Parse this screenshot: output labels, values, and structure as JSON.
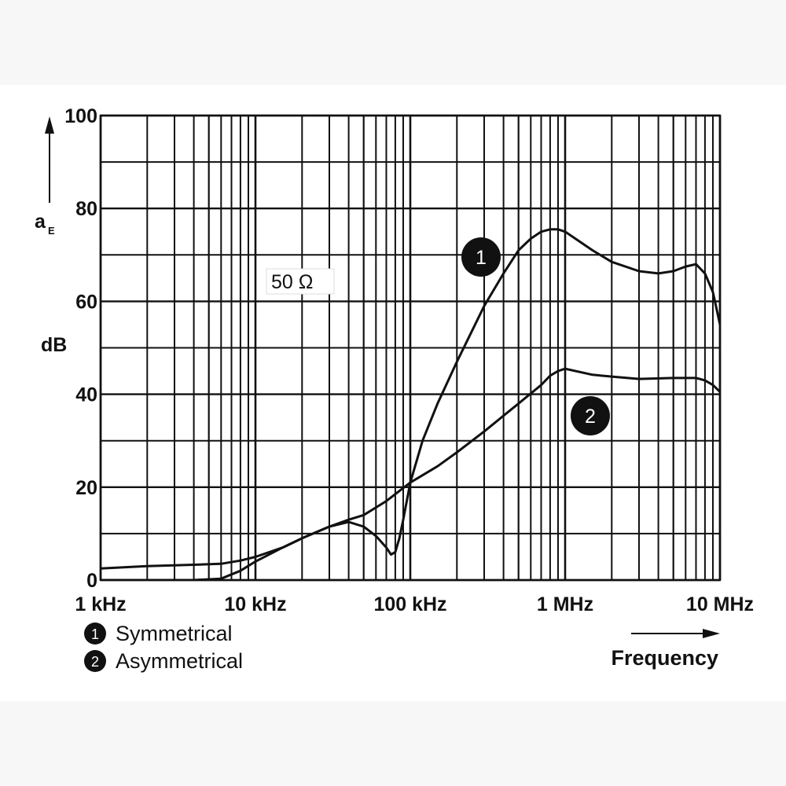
{
  "chart_data": {
    "type": "line",
    "title": "",
    "xlabel": "Frequency",
    "ylabel": "dB",
    "ylabel_symbol": "a",
    "ylabel_subscript": "E",
    "x_scale": "log",
    "xlim": [
      1000,
      10000000
    ],
    "ylim": [
      0,
      100
    ],
    "grid": true,
    "x_tick_labels": [
      "1 kHz",
      "10 kHz",
      "100 kHz",
      "1 MHz",
      "10 MHz"
    ],
    "y_tick_labels": [
      "0",
      "20",
      "40",
      "60",
      "80",
      "100"
    ],
    "annotation": "50 Ω",
    "series": [
      {
        "name": "Symmetrical",
        "marker": "1",
        "x": [
          1000,
          2000,
          4000,
          6000,
          8000,
          10000,
          15000,
          20000,
          30000,
          40000,
          50000,
          60000,
          70000,
          75000,
          80000,
          85000,
          90000,
          100000,
          120000,
          150000,
          200000,
          300000,
          400000,
          500000,
          600000,
          700000,
          800000,
          900000,
          1000000,
          1500000,
          2000000,
          3000000,
          4000000,
          5000000,
          6000000,
          7000000,
          8000000,
          9000000,
          10000000
        ],
        "y": [
          0,
          0,
          0,
          0.3,
          2,
          4,
          7,
          9,
          11.5,
          12.5,
          11.5,
          9.5,
          7,
          5.5,
          6,
          9,
          13,
          21,
          30,
          38,
          47,
          59,
          66,
          71,
          73.5,
          75,
          75.5,
          75.5,
          75,
          71,
          68.5,
          66.5,
          66,
          66.5,
          67.5,
          68,
          66,
          62,
          55
        ]
      },
      {
        "name": "Asymmetrical",
        "marker": "2",
        "x": [
          1000,
          2000,
          4000,
          6000,
          8000,
          10000,
          15000,
          20000,
          30000,
          40000,
          50000,
          70000,
          100000,
          150000,
          200000,
          300000,
          500000,
          700000,
          800000,
          900000,
          1000000,
          1500000,
          2000000,
          3000000,
          5000000,
          7000000,
          8000000,
          9000000,
          10000000
        ],
        "y": [
          2.5,
          3,
          3.3,
          3.5,
          4.2,
          5,
          7,
          9,
          11.5,
          13,
          14,
          17,
          21,
          24.5,
          27.5,
          32,
          38,
          42,
          44,
          45,
          45.5,
          44.2,
          43.8,
          43.3,
          43.5,
          43.5,
          43,
          42,
          40.5
        ]
      }
    ]
  }
}
